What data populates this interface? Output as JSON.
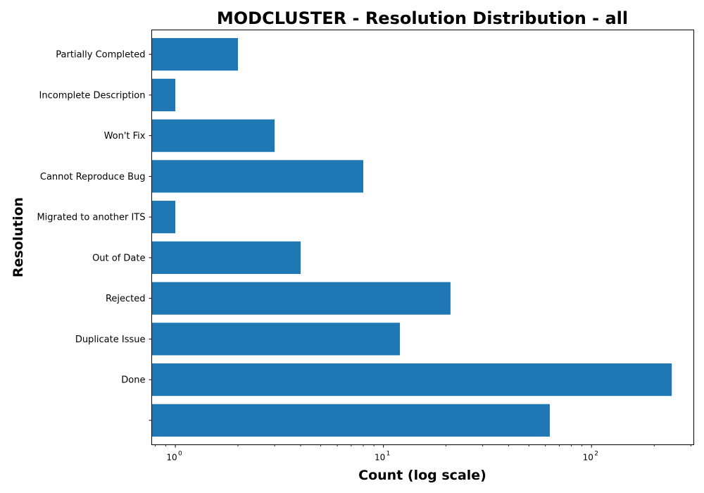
{
  "chart_data": {
    "type": "bar",
    "orientation": "horizontal",
    "title": "MODCLUSTER - Resolution Distribution - all",
    "xlabel": "Count (log scale)",
    "ylabel": "Resolution",
    "x_scale": "log",
    "xlim": [
      0.77,
      310
    ],
    "x_ticks": [
      {
        "value": 1,
        "base": "10",
        "exp": "0"
      },
      {
        "value": 10,
        "base": "10",
        "exp": "1"
      },
      {
        "value": 100,
        "base": "10",
        "exp": "2"
      }
    ],
    "categories": [
      "",
      "Done",
      "Duplicate Issue",
      "Rejected",
      "Out of Date",
      "Migrated to another ITS",
      "Cannot Reproduce Bug",
      "Won't Fix",
      "Incomplete Description",
      "Partially Completed"
    ],
    "values": [
      63,
      243,
      12,
      21,
      4,
      1,
      8,
      3,
      1,
      2
    ],
    "bar_color": "#1f77b4",
    "grid": false,
    "legend": "none"
  }
}
